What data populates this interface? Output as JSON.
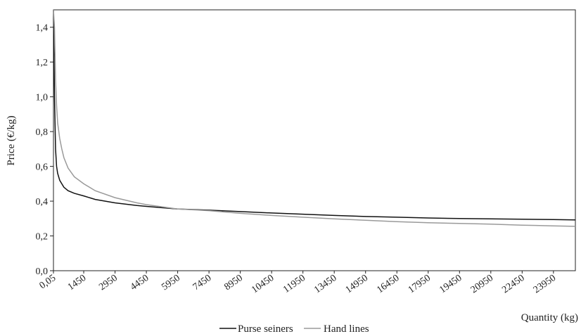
{
  "chart_data": {
    "type": "line",
    "title": "",
    "xlabel": "Quantity (kg)",
    "ylabel": "Price (€/kg)",
    "ylim": [
      0,
      1.5
    ],
    "xlim": [
      0,
      25000
    ],
    "y_ticks": [
      {
        "value": 0.0,
        "label": "0,0"
      },
      {
        "value": 0.2,
        "label": "0,2"
      },
      {
        "value": 0.4,
        "label": "0,4"
      },
      {
        "value": 0.6,
        "label": "0,6"
      },
      {
        "value": 0.8,
        "label": "0,8"
      },
      {
        "value": 1.0,
        "label": "1,0"
      },
      {
        "value": 1.2,
        "label": "1,2"
      },
      {
        "value": 1.4,
        "label": "1,4"
      }
    ],
    "x_ticks": [
      {
        "value": 0.05,
        "label": "0,05"
      },
      {
        "value": 1450,
        "label": "1450"
      },
      {
        "value": 2950,
        "label": "2950"
      },
      {
        "value": 4450,
        "label": "4450"
      },
      {
        "value": 5950,
        "label": "5950"
      },
      {
        "value": 7450,
        "label": "7450"
      },
      {
        "value": 8950,
        "label": "8950"
      },
      {
        "value": 10450,
        "label": "10450"
      },
      {
        "value": 11950,
        "label": "11950"
      },
      {
        "value": 13450,
        "label": "13450"
      },
      {
        "value": 14950,
        "label": "14950"
      },
      {
        "value": 16450,
        "label": "16450"
      },
      {
        "value": 17950,
        "label": "17950"
      },
      {
        "value": 19450,
        "label": "19450"
      },
      {
        "value": 20950,
        "label": "20950"
      },
      {
        "value": 22450,
        "label": "22450"
      },
      {
        "value": 23950,
        "label": "23950"
      }
    ],
    "grid": false,
    "legend_position": "bottom",
    "series": [
      {
        "name": "Purse seiners",
        "color": "#111111",
        "x": [
          0.05,
          50,
          100,
          150,
          200,
          300,
          400,
          500,
          700,
          1000,
          1450,
          2000,
          2950,
          4000,
          4450,
          5950,
          7450,
          8950,
          10450,
          11950,
          13450,
          14950,
          16450,
          17950,
          19450,
          20950,
          22450,
          23950,
          25000
        ],
        "y": [
          1.5,
          1.0,
          0.7,
          0.6,
          0.56,
          0.52,
          0.5,
          0.48,
          0.46,
          0.445,
          0.43,
          0.41,
          0.39,
          0.375,
          0.37,
          0.355,
          0.348,
          0.34,
          0.332,
          0.325,
          0.318,
          0.312,
          0.308,
          0.303,
          0.3,
          0.298,
          0.296,
          0.294,
          0.292
        ]
      },
      {
        "name": "Hand lines",
        "color": "#9a9a9a",
        "x": [
          0.05,
          50,
          100,
          150,
          200,
          300,
          400,
          500,
          700,
          1000,
          1450,
          2000,
          2950,
          4000,
          4450,
          5950,
          7450,
          8950,
          10450,
          11950,
          13450,
          14950,
          16450,
          17950,
          19450,
          20950,
          22450,
          23950,
          25000
        ],
        "y": [
          1.5,
          1.4,
          1.1,
          0.95,
          0.85,
          0.76,
          0.7,
          0.65,
          0.59,
          0.54,
          0.5,
          0.46,
          0.42,
          0.39,
          0.38,
          0.355,
          0.345,
          0.33,
          0.318,
          0.308,
          0.298,
          0.29,
          0.282,
          0.276,
          0.272,
          0.268,
          0.262,
          0.258,
          0.255
        ]
      }
    ]
  }
}
